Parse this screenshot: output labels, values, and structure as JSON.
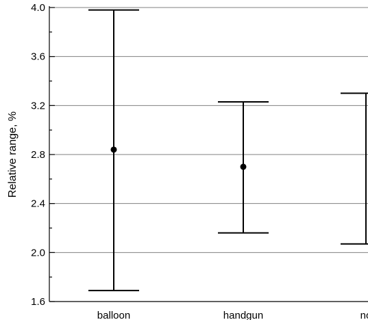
{
  "chart_data": {
    "type": "scatter",
    "title": "",
    "xlabel": "",
    "ylabel": "Relative range, %",
    "ylim": [
      1.6,
      4.0
    ],
    "yticks": [
      "1.6",
      "2.0",
      "2.4",
      "2.8",
      "3.2",
      "3.6",
      "4.0"
    ],
    "grid": true,
    "categories": [
      "balloon",
      "handgun",
      "no"
    ],
    "series": [
      {
        "points": [
          {
            "category": "balloon",
            "value": 2.84,
            "low": 1.69,
            "high": 3.98
          },
          {
            "category": "handgun",
            "value": 2.7,
            "low": 2.16,
            "high": 3.23
          },
          {
            "category": "no",
            "value": null,
            "low": 2.07,
            "high": 3.3
          }
        ]
      }
    ],
    "colors": {
      "marker": "#000000",
      "grid": "#808080",
      "axis": "#000000"
    }
  }
}
